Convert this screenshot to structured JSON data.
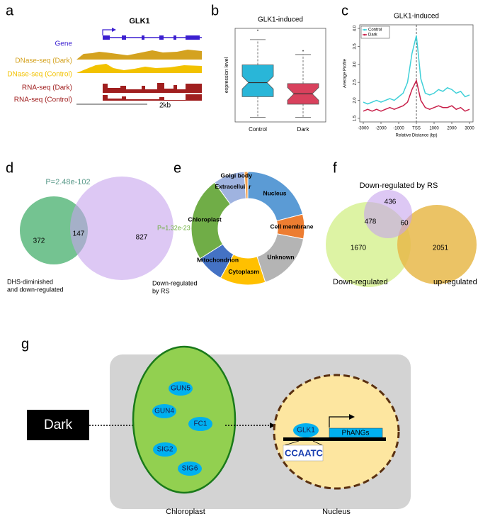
{
  "panels": [
    "a",
    "b",
    "c",
    "d",
    "e",
    "f",
    "g"
  ],
  "panel_a": {
    "title": "GLK1",
    "tracks": [
      {
        "label": "Gene",
        "color": "#3b1fd0"
      },
      {
        "label": "DNase-seq (Dark)",
        "color": "#d4a21f"
      },
      {
        "label": "DNase-seq (Control)",
        "color": "#f2c200"
      },
      {
        "label": "RNA-seq (Dark)",
        "color": "#a01f1f"
      },
      {
        "label": "RNA-seq (Control)",
        "color": "#a01f1f"
      }
    ],
    "scale_label": "2kb"
  },
  "chart_data": [
    {
      "type": "box",
      "title": "GLK1-induced",
      "y_label": "expression level",
      "categories": [
        "Control",
        "Dark"
      ],
      "colors": [
        "#29b6d8",
        "#d9415d"
      ],
      "min": [
        0.05,
        0.05
      ],
      "q1": [
        0.27,
        0.19
      ],
      "median": [
        0.42,
        0.3
      ],
      "q3": [
        0.61,
        0.41
      ],
      "max": [
        0.88,
        0.72
      ],
      "outliers": [
        0.98,
        0.76
      ],
      "ylim": [
        0,
        1
      ]
    },
    {
      "type": "line",
      "title": "GLK1-induced",
      "x_label": "Relative Distance (bp)",
      "y_label": "Average Profile",
      "x": [
        -3000,
        -2750,
        -2500,
        -2250,
        -2000,
        -1750,
        -1500,
        -1250,
        -1000,
        -750,
        -500,
        -250,
        0,
        250,
        500,
        750,
        1000,
        1250,
        1500,
        1750,
        2000,
        2250,
        2500,
        2750,
        3000
      ],
      "series": [
        {
          "name": "Control",
          "color": "#3fd0d8",
          "values": [
            1.95,
            1.9,
            1.95,
            2.0,
            1.95,
            2.0,
            2.05,
            2.0,
            2.1,
            2.2,
            2.5,
            3.3,
            3.8,
            2.6,
            2.2,
            2.15,
            2.2,
            2.3,
            2.25,
            2.35,
            2.3,
            2.2,
            2.25,
            2.1,
            2.15
          ]
        },
        {
          "name": "Dark",
          "color": "#c8204a",
          "values": [
            1.7,
            1.75,
            1.7,
            1.75,
            1.7,
            1.75,
            1.8,
            1.75,
            1.8,
            1.85,
            1.95,
            2.3,
            2.55,
            2.0,
            1.8,
            1.75,
            1.8,
            1.85,
            1.8,
            1.8,
            1.85,
            1.75,
            1.8,
            1.7,
            1.75
          ]
        }
      ],
      "xlim": [
        -3200,
        3200
      ],
      "ylim": [
        1.4,
        4.1
      ],
      "xticks": [
        -3000,
        -2000,
        -1000,
        {
          "value": 0,
          "label": "TSS"
        },
        1000,
        2000,
        3000
      ],
      "yticks": [
        1.5,
        {
          "value": 2,
          "label": "2.0"
        },
        2.5,
        {
          "value": 3,
          "label": "3.0"
        },
        3.5,
        {
          "value": 4,
          "label": "4.0"
        }
      ],
      "vline": 0,
      "legend": "top-left"
    },
    {
      "type": "venn",
      "annotation": "P=2.48e-102",
      "sets": [
        {
          "label": [
            "DHS-diminished",
            "and down-regulated"
          ],
          "color": "#5cb87e"
        },
        {
          "label": [
            "Down-regulated",
            "by RS"
          ],
          "color": "#c6a3ec"
        }
      ],
      "values": [
        372,
        147,
        827
      ]
    },
    {
      "type": "donut",
      "annotation": "P=1.32e-23",
      "categories": [
        "Nucleus",
        "Cell membrane",
        "Unknown",
        "Cytoplasm",
        "Mitochondrion",
        "Chloroplast",
        "Extracellular",
        "Golgi body"
      ],
      "values": [
        21,
        7,
        17,
        13,
        8,
        24,
        9,
        1
      ],
      "colors": [
        "#5b9bd5",
        "#ed7d31",
        "#b4b4b4",
        "#ffc000",
        "#4472c4",
        "#70ad47",
        "#9fb3e0",
        "#f0a050"
      ]
    },
    {
      "type": "venn",
      "sets": [
        {
          "label": [
            "Down-regulated by RS"
          ],
          "color": "#c6a3ec"
        },
        {
          "label": [
            "Down-regulated"
          ],
          "color": "#d9f29a"
        },
        {
          "label": [
            "up-regulated"
          ],
          "color": "#e8b84a"
        }
      ],
      "values": [
        436,
        478,
        60,
        1670,
        2051
      ]
    }
  ],
  "diagram": {
    "signal": "Dark",
    "chloroplast": {
      "label": "Chloroplast",
      "proteins": [
        "GUN5",
        "GUN4",
        "FC1",
        "SIG2",
        "SIG6"
      ]
    },
    "nucleus": {
      "label": "Nucleus",
      "factor": "GLK1",
      "genes": "PhANGs",
      "motif": "CCAATC"
    }
  }
}
